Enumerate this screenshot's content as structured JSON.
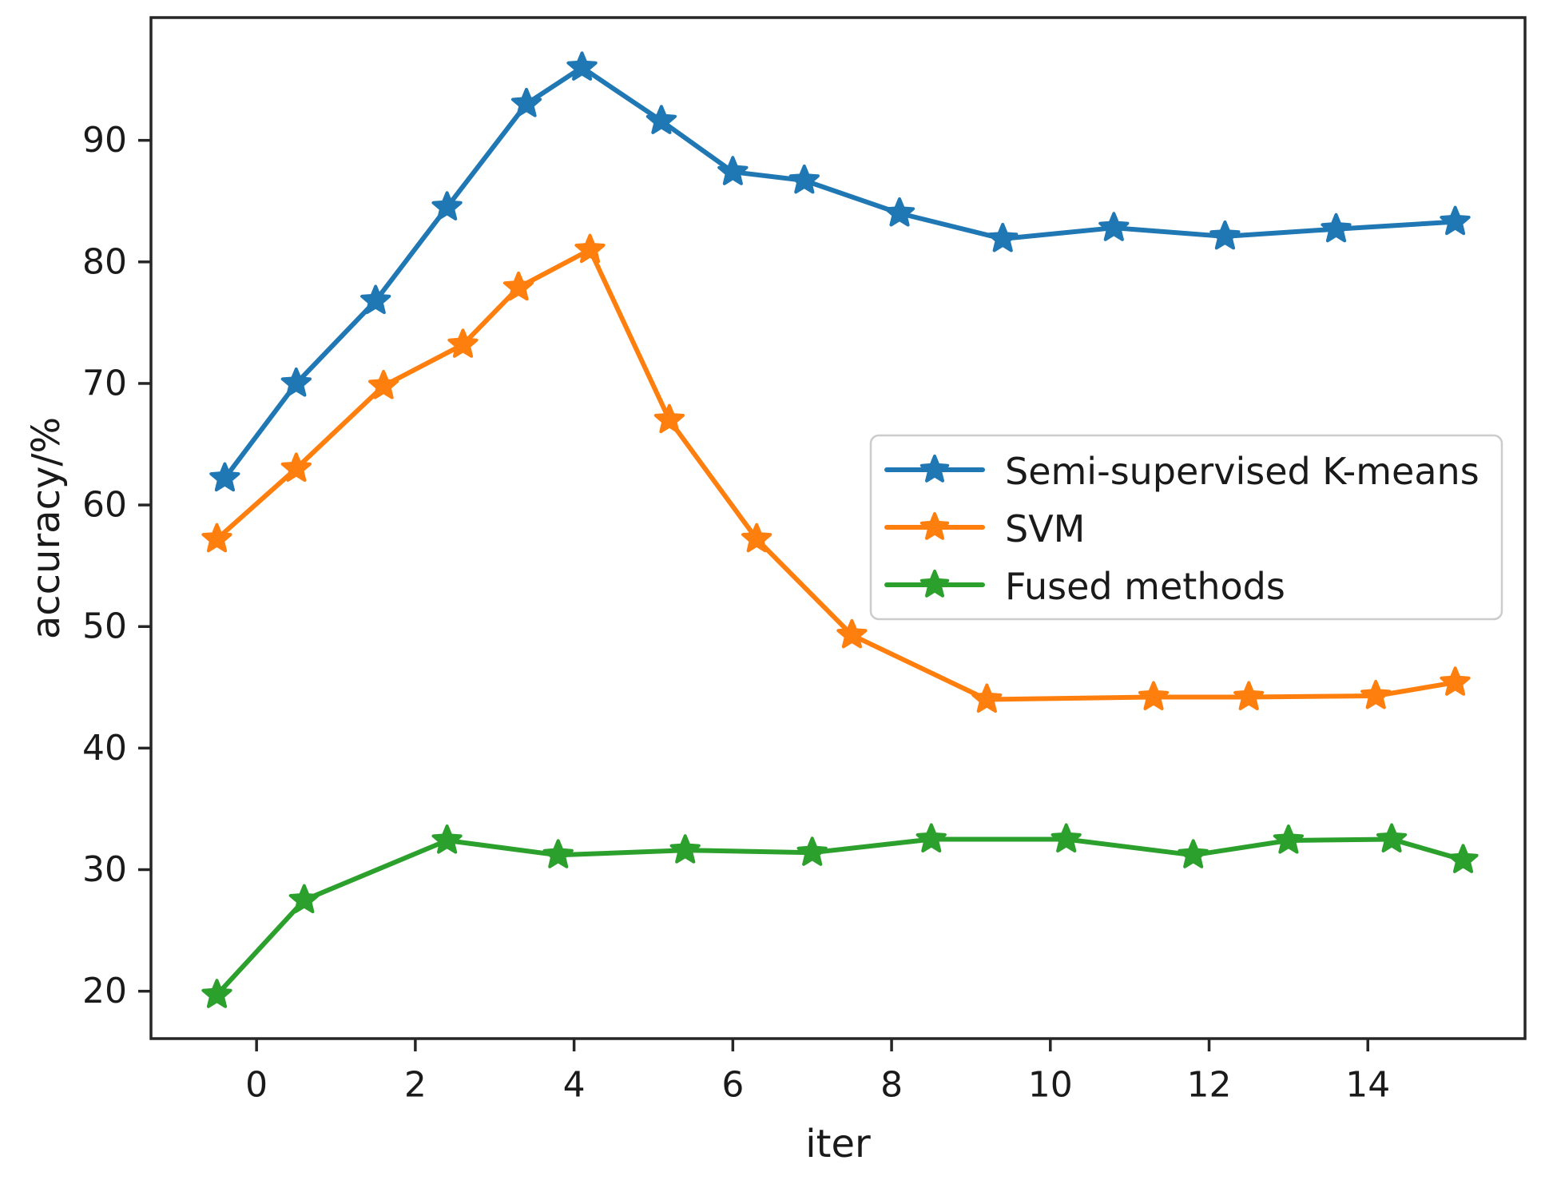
{
  "figure": {
    "background": "#ffffff",
    "axis_color": "#262626",
    "legend_border_color": "#cccccc",
    "legend_background": "#ffffff"
  },
  "chart_data": {
    "type": "line",
    "title": "",
    "xlabel": "iter",
    "ylabel": "accuracy/%",
    "xlim": [
      -1.33,
      15.98
    ],
    "ylim": [
      16.1,
      100.1
    ],
    "xticks": [
      0,
      2,
      4,
      6,
      8,
      10,
      12,
      14
    ],
    "yticks": [
      20,
      30,
      40,
      50,
      60,
      70,
      80,
      90
    ],
    "grid": false,
    "marker": "star",
    "legend_position": "center-right",
    "series": [
      {
        "name": "Semi-supervised K-means",
        "color": "#1f77b4",
        "x": [
          -0.4,
          0.5,
          1.5,
          2.4,
          3.4,
          4.1,
          5.1,
          6.0,
          6.9,
          8.1,
          9.4,
          10.8,
          12.2,
          13.6,
          15.1
        ],
        "y": [
          62.2,
          70.0,
          76.8,
          84.5,
          93.0,
          96.0,
          91.6,
          87.4,
          86.7,
          84.0,
          81.9,
          82.8,
          82.1,
          82.7,
          83.3
        ]
      },
      {
        "name": "SVM",
        "color": "#ff7f0e",
        "x": [
          -0.5,
          0.5,
          1.6,
          2.6,
          3.3,
          4.2,
          5.2,
          6.3,
          7.5,
          9.2,
          11.3,
          12.5,
          14.1,
          15.1
        ],
        "y": [
          57.2,
          63.0,
          69.8,
          73.2,
          77.9,
          81.0,
          67.0,
          57.2,
          49.3,
          44.0,
          44.2,
          44.2,
          44.3,
          45.4
        ]
      },
      {
        "name": "Fused methods",
        "color": "#2ca02c",
        "x": [
          -0.5,
          0.6,
          2.4,
          3.8,
          5.4,
          7.0,
          8.5,
          10.2,
          11.8,
          13.0,
          14.3,
          15.2
        ],
        "y": [
          19.7,
          27.5,
          32.4,
          31.2,
          31.6,
          31.4,
          32.5,
          32.5,
          31.2,
          32.4,
          32.5,
          30.8
        ]
      }
    ]
  }
}
